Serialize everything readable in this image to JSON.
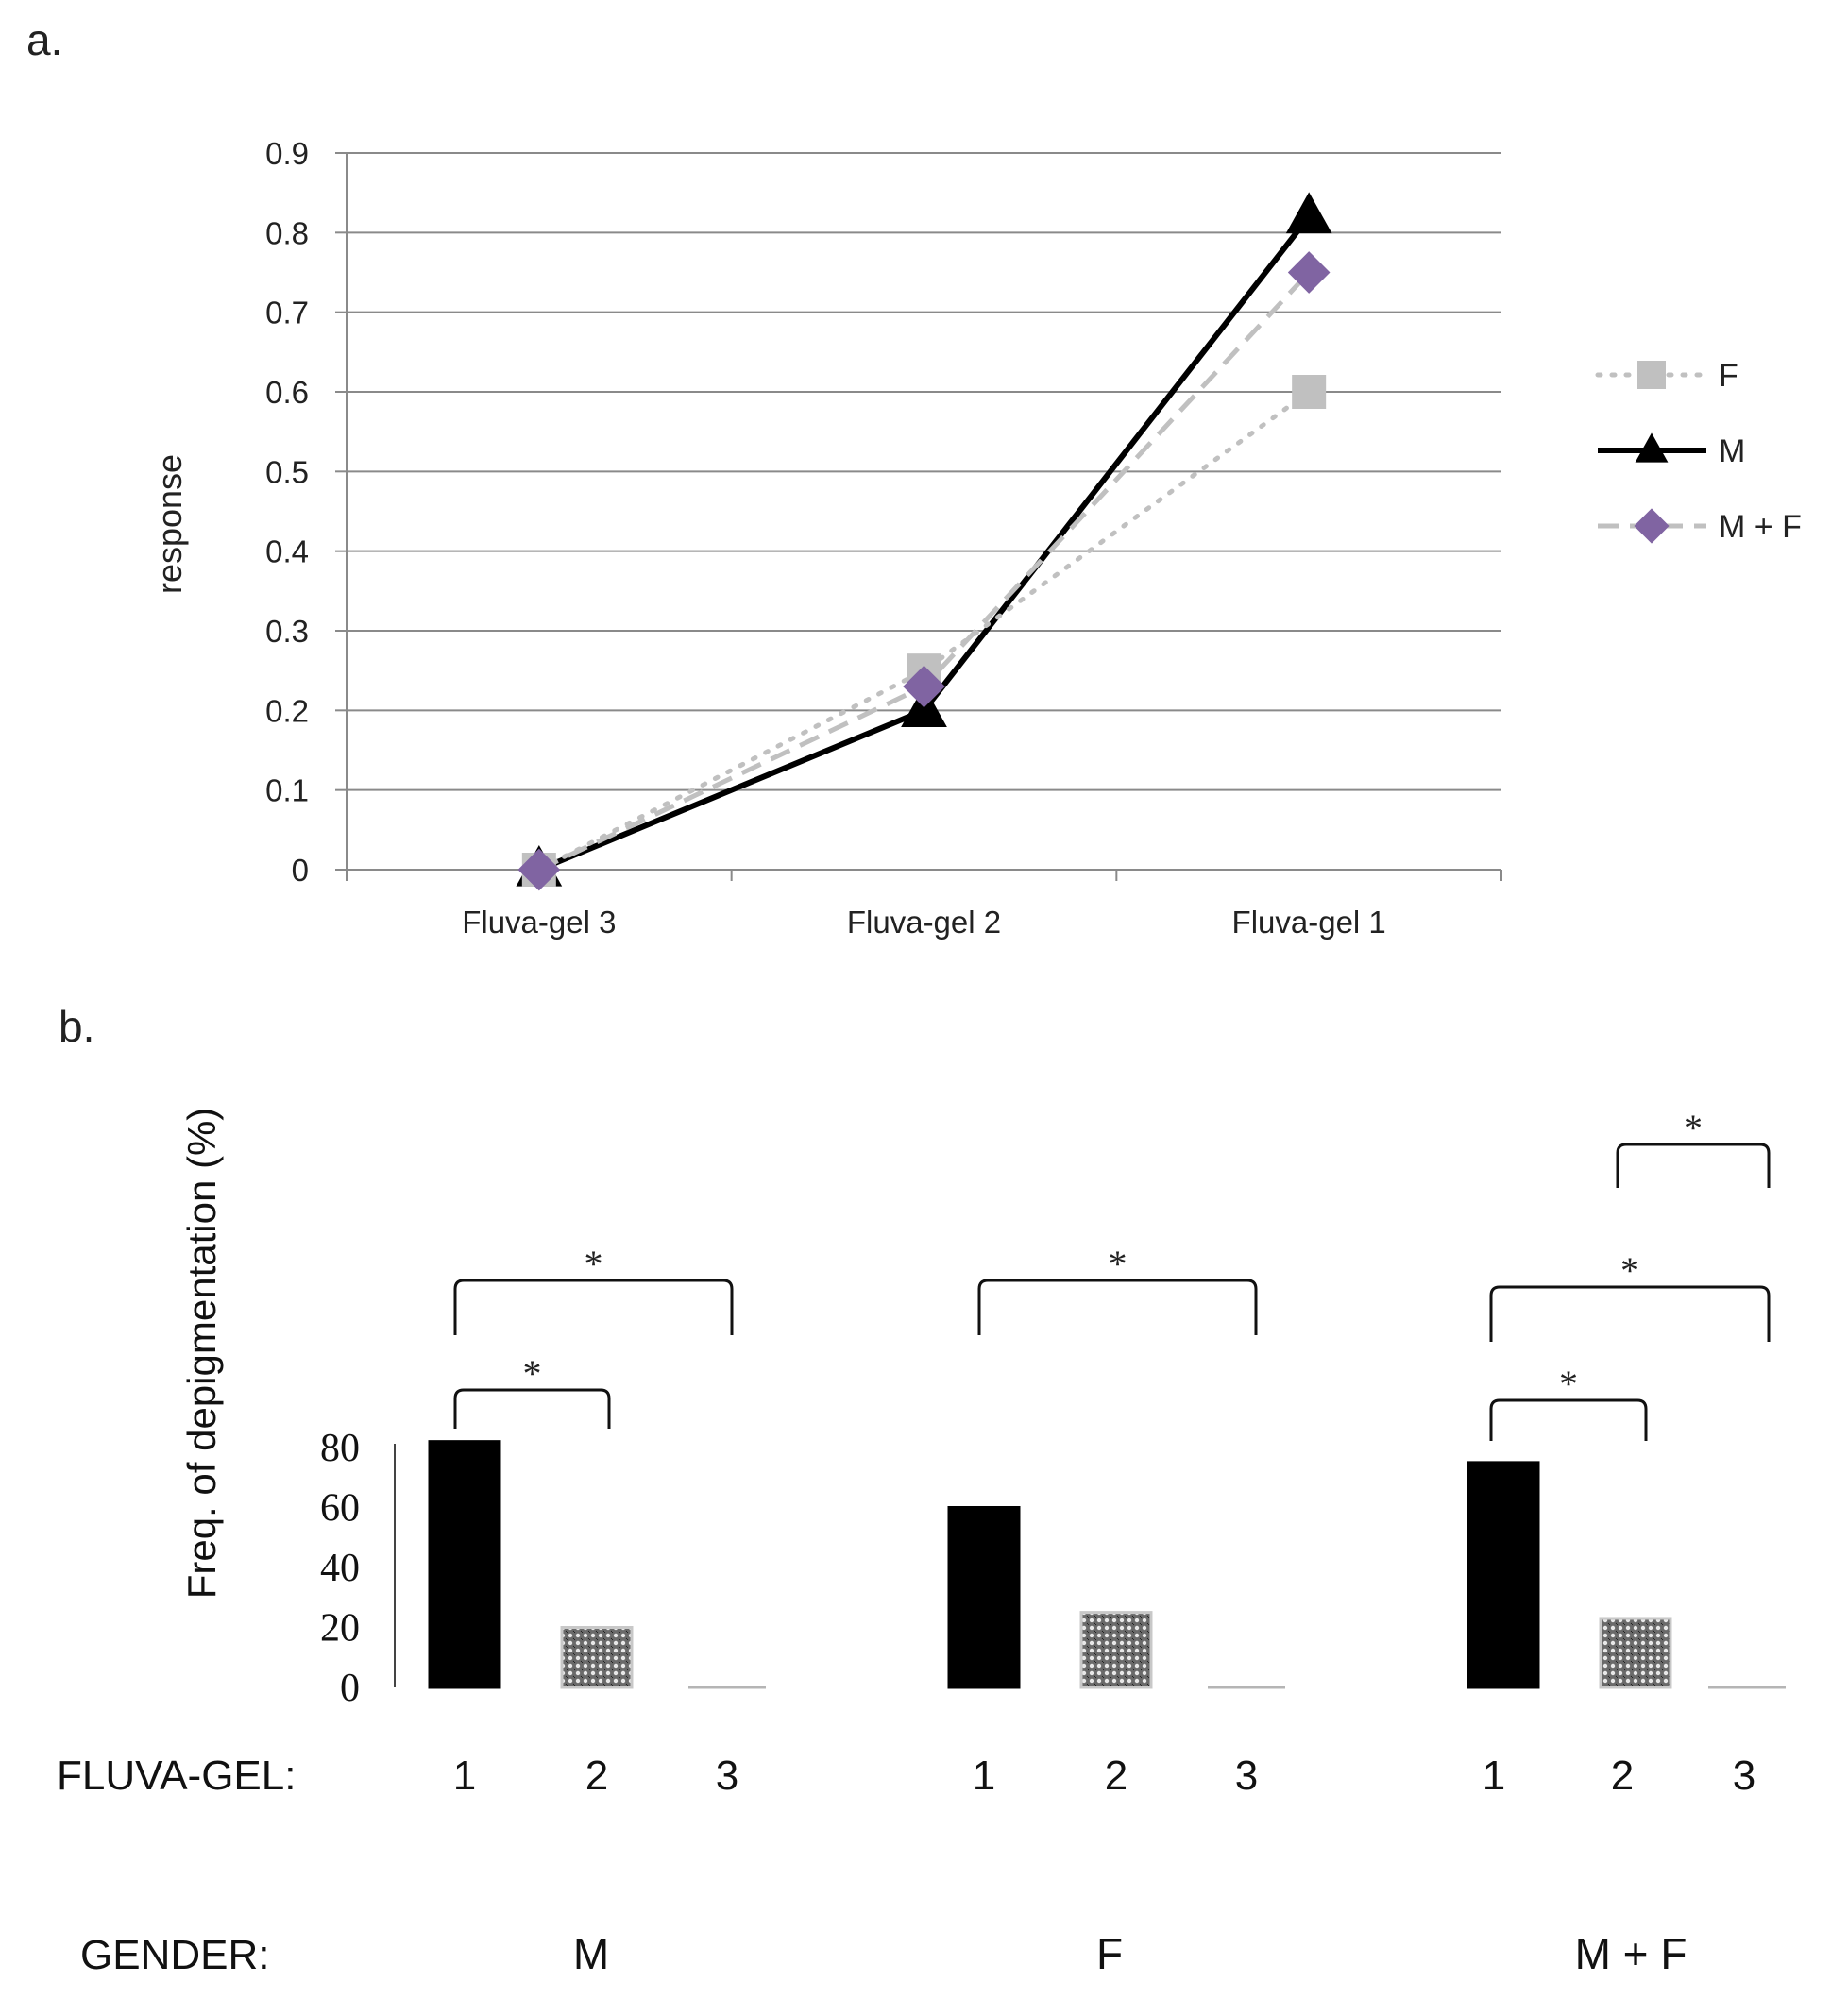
{
  "panel_a": {
    "label": "a.",
    "chart_data": {
      "type": "line",
      "title": "",
      "xlabel": "",
      "ylabel": "response",
      "categories": [
        "Fluva-gel 3",
        "Fluva-gel 2",
        "Fluva-gel 1"
      ],
      "yticks": [
        "0",
        "0.1",
        "0.2",
        "0.3",
        "0.4",
        "0.5",
        "0.6",
        "0.7",
        "0.8",
        "0.9"
      ],
      "ylim": [
        0,
        0.9
      ],
      "grid": true,
      "legend_position": "right",
      "series": [
        {
          "name": "F",
          "values": [
            0,
            0.25,
            0.6
          ],
          "color": "#c0c0c0",
          "line": "dotted",
          "marker": "square"
        },
        {
          "name": "M",
          "values": [
            0,
            0.2,
            0.82
          ],
          "color": "#000000",
          "line": "solid",
          "marker": "triangle"
        },
        {
          "name": "M + F",
          "values": [
            0,
            0.23,
            0.75
          ],
          "color": "#c0c0c0",
          "marker_color": "#8064a2",
          "line": "dashed",
          "marker": "diamond"
        }
      ]
    }
  },
  "panel_b": {
    "label": "b.",
    "chart_data": {
      "type": "bar",
      "title": "",
      "ylabel": "Freq. of depigmentation (%)",
      "yticks": [
        "0",
        "20",
        "40",
        "60",
        "80"
      ],
      "ylim": [
        0,
        80
      ],
      "x_row_label": "FLUVA-GEL:",
      "group_row_label": "GENDER:",
      "groups": [
        {
          "name": "M",
          "bars": [
            {
              "label": "1",
              "value": 82
            },
            {
              "label": "2",
              "value": 20
            },
            {
              "label": "3",
              "value": 0
            }
          ]
        },
        {
          "name": "F",
          "bars": [
            {
              "label": "1",
              "value": 60
            },
            {
              "label": "2",
              "value": 25
            },
            {
              "label": "3",
              "value": 0
            }
          ]
        },
        {
          "name": "M + F",
          "bars": [
            {
              "label": "1",
              "value": 75
            },
            {
              "label": "2",
              "value": 23
            },
            {
              "label": "3",
              "value": 0
            }
          ]
        }
      ],
      "bar_fills": [
        "solid-black",
        "crosshatch-gray",
        "none"
      ],
      "significance": [
        {
          "group": 0,
          "from": 0,
          "to": 1,
          "label": "*"
        },
        {
          "group": 0,
          "from": 0,
          "to": 2,
          "label": "*"
        },
        {
          "group": 1,
          "from": 0,
          "to": 2,
          "label": "*"
        },
        {
          "group": 2,
          "from": 0,
          "to": 1,
          "label": "*"
        },
        {
          "group": 2,
          "from": 0,
          "to": 2,
          "label": "*"
        },
        {
          "group": 2,
          "from": 1,
          "to": 2,
          "label": "*"
        }
      ]
    }
  }
}
